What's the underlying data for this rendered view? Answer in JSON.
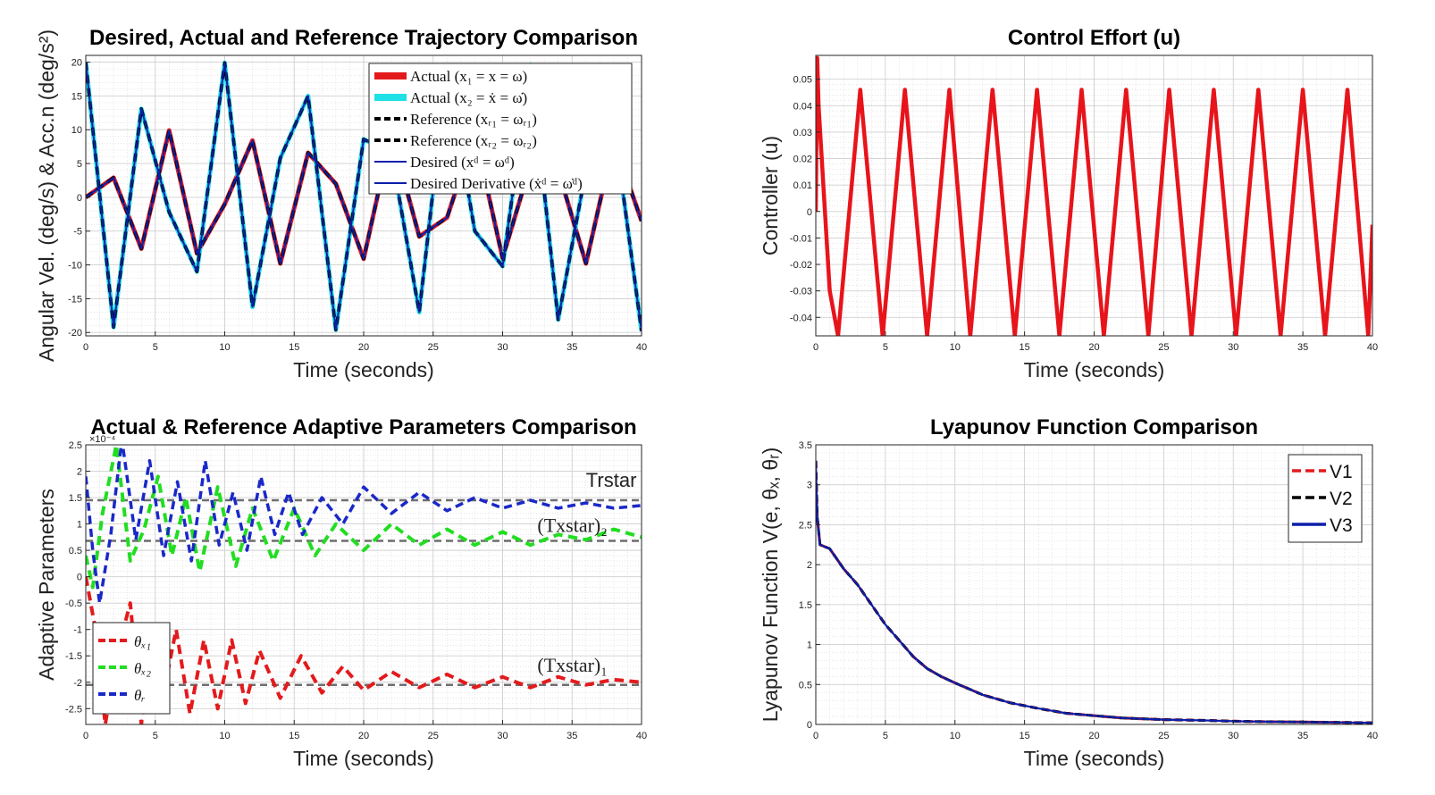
{
  "chart_data": [
    {
      "type": "line",
      "title": "Desired, Actual and Reference Trajectory Comparison",
      "xlabel": "Time (seconds)",
      "ylabel": "Angular Vel. (deg/s) & Acc.n (deg/s²)",
      "xlim": [
        0,
        40
      ],
      "ylim": [
        -20.5,
        21
      ],
      "xticks": [
        0,
        5,
        10,
        15,
        20,
        25,
        30,
        35,
        40
      ],
      "yticks": [
        -20,
        -15,
        -10,
        -5,
        0,
        5,
        10,
        15,
        20
      ],
      "grid": true,
      "legend_position": "top-right",
      "series": [
        {
          "name": "Actual (x₁ = x = ω)",
          "color": "#e31a1c",
          "style": "solid",
          "x": [
            0,
            2,
            4,
            6,
            8,
            10,
            12,
            14,
            16,
            18,
            20,
            22,
            24,
            26,
            28,
            30,
            32,
            34,
            36,
            38,
            40
          ],
          "y": [
            0,
            2.9,
            -7.6,
            9.9,
            -8.3,
            -1.0,
            8.4,
            -9.8,
            6.6,
            2.0,
            -9.1,
            9.5,
            -5.8,
            -3.0,
            9.5,
            -9.0,
            4.8,
            4.0,
            -9.8,
            8.3,
            -3.5
          ]
        },
        {
          "name": "Actual (x₂ = ẋ = ω̇)",
          "color": "#1fe0e6",
          "style": "solid",
          "x": [
            0,
            2,
            4,
            6,
            8,
            10,
            12,
            14,
            16,
            18,
            20,
            22,
            24,
            26,
            28,
            30,
            32,
            34,
            36,
            38,
            40
          ],
          "y": [
            20,
            -19.2,
            13.1,
            -2.2,
            -11.0,
            19.9,
            -16.2,
            5.8,
            15.0,
            -19.6,
            8.6,
            6.5,
            -17.0,
            19.1,
            -5.0,
            -10.2,
            19.6,
            -18.1,
            4.0,
            10.9,
            -19.8
          ]
        },
        {
          "name": "Reference (xᵣ₁ = ωᵣ₁)",
          "color": "#000000",
          "style": "dashed",
          "x": [
            0,
            2,
            4,
            6,
            8,
            10,
            12,
            14,
            16,
            18,
            20,
            22,
            24,
            26,
            28,
            30,
            32,
            34,
            36,
            38,
            40
          ],
          "y": [
            0,
            2.9,
            -7.6,
            9.9,
            -8.3,
            -1.0,
            8.4,
            -9.8,
            6.6,
            2.0,
            -9.1,
            9.5,
            -5.8,
            -3.0,
            9.5,
            -9.0,
            4.8,
            4.0,
            -9.8,
            8.3,
            -3.5
          ]
        },
        {
          "name": "Reference (xᵣ₂ = ωᵣ₂)",
          "color": "#000000",
          "style": "dashed",
          "x": [
            0,
            2,
            4,
            6,
            8,
            10,
            12,
            14,
            16,
            18,
            20,
            22,
            24,
            26,
            28,
            30,
            32,
            34,
            36,
            38,
            40
          ],
          "y": [
            20,
            -19.2,
            13.1,
            -2.2,
            -11.0,
            19.9,
            -16.2,
            5.8,
            15.0,
            -19.6,
            8.6,
            6.5,
            -17.0,
            19.1,
            -5.0,
            -10.2,
            19.6,
            -18.1,
            4.0,
            10.9,
            -19.8
          ]
        },
        {
          "name": "Desired (xᵈ = ωᵈ)",
          "color": "#0b1faa",
          "style": "solid",
          "x": [
            0,
            2,
            4,
            6,
            8,
            10,
            12,
            14,
            16,
            18,
            20,
            22,
            24,
            26,
            28,
            30,
            32,
            34,
            36,
            38,
            40
          ],
          "y": [
            0,
            2.9,
            -7.6,
            9.9,
            -8.3,
            -1.0,
            8.4,
            -9.8,
            6.6,
            2.0,
            -9.1,
            9.5,
            -5.8,
            -3.0,
            9.5,
            -9.0,
            4.8,
            4.0,
            -9.8,
            8.3,
            -3.5
          ]
        },
        {
          "name": "Desired Derivative (ẋᵈ = ω̇ᵈ)",
          "color": "#0b1faa",
          "style": "solid",
          "x": [
            0,
            2,
            4,
            6,
            8,
            10,
            12,
            14,
            16,
            18,
            20,
            22,
            24,
            26,
            28,
            30,
            32,
            34,
            36,
            38,
            40
          ],
          "y": [
            20,
            -19.2,
            13.1,
            -2.2,
            -11.0,
            19.9,
            -16.2,
            5.8,
            15.0,
            -19.6,
            8.6,
            6.5,
            -17.0,
            19.1,
            -5.0,
            -10.2,
            19.6,
            -18.1,
            4.0,
            10.9,
            -19.8
          ]
        }
      ]
    },
    {
      "type": "line",
      "title": "Control Effort (u)",
      "xlabel": "Time (seconds)",
      "ylabel": "Controller (u)",
      "xlim": [
        0,
        40
      ],
      "ylim": [
        -0.047,
        0.059
      ],
      "xticks": [
        0,
        5,
        10,
        15,
        20,
        25,
        30,
        35,
        40
      ],
      "yticks": [
        -0.04,
        -0.03,
        -0.02,
        -0.01,
        0,
        0.01,
        0.02,
        0.03,
        0.04,
        0.05
      ],
      "ytick_labels": [
        "-0.04",
        "-0.03",
        "-0.02",
        "-0.01",
        "0",
        "0.01",
        "0.02",
        "0.03",
        "0.04",
        "0.05"
      ],
      "grid": true,
      "series": [
        {
          "name": "",
          "color": "#e8141b",
          "x": [
            0,
            0.1,
            0.2,
            1.0,
            1.6,
            3.2,
            4.8,
            6.4,
            8.0,
            9.6,
            11.1,
            12.7,
            14.3,
            15.9,
            17.5,
            19.1,
            20.7,
            22.3,
            23.9,
            25.4,
            27.0,
            28.6,
            30.2,
            31.8,
            33.4,
            35.0,
            36.6,
            38.2,
            39.7,
            40
          ],
          "y": [
            0,
            0.058,
            0.04,
            -0.03,
            -0.047,
            0.046,
            -0.047,
            0.046,
            -0.047,
            0.046,
            -0.047,
            0.046,
            -0.047,
            0.046,
            -0.047,
            0.046,
            -0.047,
            0.046,
            -0.047,
            0.046,
            -0.047,
            0.046,
            -0.047,
            0.046,
            -0.047,
            0.046,
            -0.047,
            0.046,
            -0.047,
            -0.005
          ]
        }
      ]
    },
    {
      "type": "line",
      "title": "Actual & Reference Adaptive Parameters Comparison",
      "xlabel": "Time (seconds)",
      "ylabel": "Adaptive Parameters",
      "y_multiplier": "×10⁻⁴",
      "xlim": [
        0,
        40
      ],
      "ylim": [
        -2.8,
        2.5
      ],
      "xticks": [
        0,
        5,
        10,
        15,
        20,
        25,
        30,
        35,
        40
      ],
      "yticks": [
        -2.5,
        -2,
        -1.5,
        -1,
        -0.5,
        0,
        0.5,
        1,
        1.5,
        2,
        2.5
      ],
      "grid": true,
      "legend_position": "bottom-left",
      "annotations": [
        {
          "text": "Trstar",
          "x": 36,
          "y": 1.7
        },
        {
          "text": "(Txstar)₂",
          "x": 32.5,
          "y": 0.85
        },
        {
          "text": "(Txstar)₁",
          "x": 32.5,
          "y": -1.8
        }
      ],
      "reference_lines": [
        {
          "y": 1.45,
          "color": "#6e6e6e"
        },
        {
          "y": 0.68,
          "color": "#6e6e6e"
        },
        {
          "y": -2.05,
          "color": "#6e6e6e"
        }
      ],
      "series": [
        {
          "name": "θₓ₁",
          "color": "#e31a1c",
          "style": "dashed",
          "x": [
            0,
            0.7,
            1.4,
            2.2,
            3.2,
            4.0,
            4.8,
            5.6,
            6.5,
            7.5,
            8.5,
            9.5,
            10.5,
            11.5,
            12.5,
            14.0,
            15.5,
            17.0,
            18.5,
            20.0,
            22.0,
            24.0,
            26.0,
            28.0,
            30.0,
            32.0,
            34.0,
            36.0,
            38.0,
            40.0
          ],
          "y": [
            0,
            -1.0,
            -2.8,
            -1.5,
            -0.5,
            -2.8,
            -0.9,
            -2.2,
            -1.0,
            -2.6,
            -1.2,
            -2.5,
            -1.2,
            -2.4,
            -1.4,
            -2.3,
            -1.5,
            -2.2,
            -1.7,
            -2.15,
            -1.8,
            -2.1,
            -1.85,
            -2.1,
            -1.9,
            -2.1,
            -1.9,
            -2.05,
            -1.95,
            -2.0
          ]
        },
        {
          "name": "θₓ₂",
          "color": "#22dd22",
          "style": "dashed",
          "x": [
            0,
            0.5,
            1.2,
            2.2,
            3.2,
            4.2,
            5.2,
            6.2,
            7.2,
            8.2,
            9.5,
            10.8,
            12.0,
            13.5,
            15.0,
            16.5,
            18.0,
            20.0,
            22.0,
            24.0,
            26.0,
            28.0,
            30.0,
            32.0,
            34.0,
            36.0,
            38.0,
            40.0
          ],
          "y": [
            0.4,
            -0.2,
            1.2,
            2.5,
            0.3,
            0.9,
            1.9,
            0.4,
            1.5,
            0.1,
            1.7,
            0.2,
            1.3,
            0.3,
            1.3,
            0.4,
            1.0,
            0.5,
            1.0,
            0.6,
            0.9,
            0.6,
            0.85,
            0.6,
            0.8,
            0.7,
            0.9,
            0.75
          ]
        },
        {
          "name": "θᵣ",
          "color": "#1a28c8",
          "style": "dashed",
          "x": [
            0,
            0.5,
            1.0,
            1.8,
            2.6,
            3.6,
            4.6,
            5.6,
            6.6,
            7.6,
            8.6,
            9.6,
            10.6,
            11.6,
            12.6,
            13.6,
            14.6,
            15.6,
            17.0,
            18.5,
            20.0,
            22.0,
            24.0,
            26.0,
            28.0,
            30.0,
            32.0,
            34.0,
            36.0,
            38.0,
            40.0
          ],
          "y": [
            1.9,
            0.5,
            -0.5,
            0.8,
            2.6,
            0.7,
            2.2,
            0.4,
            1.8,
            0.3,
            2.2,
            0.6,
            1.6,
            0.5,
            1.9,
            0.8,
            1.6,
            0.8,
            1.5,
            1.0,
            1.7,
            1.2,
            1.6,
            1.25,
            1.5,
            1.3,
            1.45,
            1.3,
            1.4,
            1.3,
            1.35
          ]
        }
      ]
    },
    {
      "type": "line",
      "title": "Lyapunov Function Comparison",
      "xlabel": "Time (seconds)",
      "ylabel": "Lyapunov Function V(e, θₓ, θᵣ)",
      "xlim": [
        0,
        40
      ],
      "ylim": [
        0,
        3.5
      ],
      "xticks": [
        0,
        5,
        10,
        15,
        20,
        25,
        30,
        35,
        40
      ],
      "yticks": [
        0,
        0.5,
        1,
        1.5,
        2,
        2.5,
        3,
        3.5
      ],
      "grid": true,
      "legend_position": "top-right",
      "series": [
        {
          "name": "V1",
          "color": "#e31a1c",
          "style": "dashed",
          "x": [
            0,
            0.1,
            0.3,
            1,
            2,
            3,
            4,
            5,
            6,
            7,
            8,
            9,
            10,
            12,
            14,
            16,
            18,
            20,
            22,
            25,
            28,
            30,
            32,
            35,
            38,
            40
          ],
          "y": [
            3.3,
            2.6,
            2.25,
            2.2,
            1.95,
            1.75,
            1.5,
            1.25,
            1.05,
            0.85,
            0.7,
            0.6,
            0.52,
            0.37,
            0.27,
            0.2,
            0.14,
            0.11,
            0.08,
            0.06,
            0.05,
            0.04,
            0.035,
            0.03,
            0.025,
            0.02
          ]
        },
        {
          "name": "V2",
          "color": "#000000",
          "style": "dashed",
          "x": [
            0,
            0.1,
            0.3,
            1,
            2,
            3,
            4,
            5,
            6,
            7,
            8,
            9,
            10,
            12,
            14,
            16,
            18,
            20,
            22,
            25,
            28,
            30,
            32,
            35,
            38,
            40
          ],
          "y": [
            3.3,
            2.6,
            2.25,
            2.2,
            1.95,
            1.75,
            1.5,
            1.25,
            1.05,
            0.85,
            0.7,
            0.6,
            0.52,
            0.37,
            0.27,
            0.2,
            0.14,
            0.11,
            0.08,
            0.06,
            0.05,
            0.04,
            0.035,
            0.03,
            0.025,
            0.02
          ]
        },
        {
          "name": "V3",
          "color": "#0b1faa",
          "style": "solid",
          "x": [
            0,
            0.1,
            0.3,
            1,
            2,
            3,
            4,
            5,
            6,
            7,
            8,
            9,
            10,
            12,
            14,
            16,
            18,
            20,
            22,
            25,
            28,
            30,
            32,
            35,
            38,
            40
          ],
          "y": [
            3.3,
            2.6,
            2.25,
            2.2,
            1.95,
            1.75,
            1.5,
            1.25,
            1.05,
            0.85,
            0.7,
            0.6,
            0.52,
            0.37,
            0.27,
            0.2,
            0.14,
            0.11,
            0.08,
            0.06,
            0.05,
            0.04,
            0.035,
            0.03,
            0.025,
            0.02
          ]
        }
      ]
    }
  ]
}
